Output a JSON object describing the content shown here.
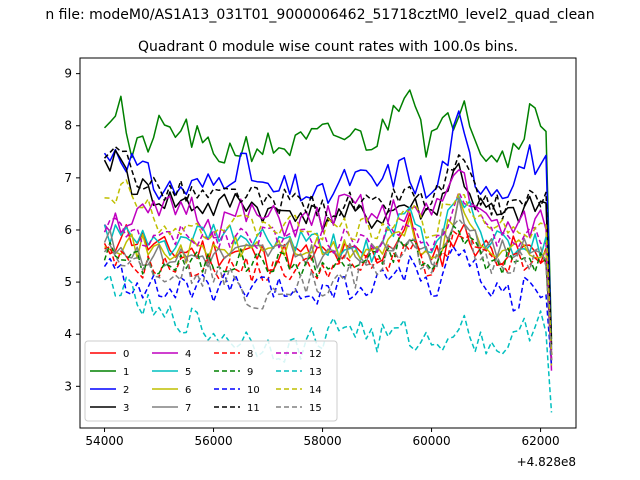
{
  "chart_data": {
    "type": "line",
    "suptitle": "n file: modeM0/AS1A13_031T01_9000006462_51718cztM0_level2_quad_clean",
    "title": "Quadrant 0 module wise count rates with 100.0s bins.",
    "xlabel": "",
    "ylabel": "",
    "x_offset_label": "+4.828e8",
    "xlim": [
      53550,
      62650
    ],
    "ylim": [
      2.2,
      9.3
    ],
    "x_ticks": [
      54000,
      56000,
      58000,
      60000,
      62000
    ],
    "x_tick_labels": [
      "54000",
      "56000",
      "58000",
      "60000",
      "62000"
    ],
    "y_ticks": [
      3,
      4,
      5,
      6,
      7,
      8,
      9
    ],
    "y_tick_labels": [
      "3",
      "4",
      "5",
      "6",
      "7",
      "8",
      "9"
    ],
    "grid": false,
    "legend": "lower-left",
    "legend_columns": 4,
    "x_start": 54000,
    "x_step": 100,
    "x_end": 62200,
    "series": [
      {
        "name": "0",
        "color": "#ff0000",
        "style": "solid",
        "base": 5.5,
        "amp": 0.3,
        "phase": 0.3,
        "seed": 11,
        "end": 3.6,
        "anchors": [
          [
            54000,
            5.5
          ],
          [
            54300,
            6.0
          ],
          [
            55000,
            5.6
          ],
          [
            56000,
            5.6
          ],
          [
            57000,
            5.5
          ],
          [
            58000,
            5.5
          ],
          [
            59000,
            5.5
          ],
          [
            59600,
            6.1
          ],
          [
            60000,
            5.3
          ],
          [
            60500,
            6.0
          ],
          [
            61000,
            5.6
          ],
          [
            62000,
            5.6
          ]
        ]
      },
      {
        "name": "1",
        "color": "#008000",
        "style": "solid",
        "base": 8.0,
        "amp": 0.3,
        "phase": 1.1,
        "seed": 21,
        "end": 3.9,
        "anchors": [
          [
            54000,
            8.1
          ],
          [
            54300,
            8.45
          ],
          [
            54500,
            7.4
          ],
          [
            55000,
            7.9
          ],
          [
            55500,
            7.9
          ],
          [
            56000,
            7.4
          ],
          [
            56500,
            7.6
          ],
          [
            57000,
            7.6
          ],
          [
            57500,
            7.6
          ],
          [
            58000,
            7.8
          ],
          [
            58500,
            7.8
          ],
          [
            59000,
            7.7
          ],
          [
            59300,
            8.3
          ],
          [
            59600,
            8.95
          ],
          [
            59900,
            7.7
          ],
          [
            60300,
            8.0
          ],
          [
            60600,
            8.6
          ],
          [
            60900,
            7.6
          ],
          [
            61400,
            7.4
          ],
          [
            61800,
            8.25
          ],
          [
            62100,
            8.05
          ]
        ]
      },
      {
        "name": "2",
        "color": "#0000ff",
        "style": "solid",
        "base": 6.9,
        "amp": 0.3,
        "phase": 2.0,
        "seed": 31,
        "end": 3.7,
        "anchors": [
          [
            54000,
            7.4
          ],
          [
            54200,
            7.6
          ],
          [
            54500,
            7.3
          ],
          [
            55000,
            6.8
          ],
          [
            55500,
            6.8
          ],
          [
            56000,
            6.9
          ],
          [
            56500,
            7.3
          ],
          [
            57000,
            6.7
          ],
          [
            57500,
            6.8
          ],
          [
            58000,
            6.6
          ],
          [
            58500,
            7.0
          ],
          [
            59000,
            6.9
          ],
          [
            59500,
            7.2
          ],
          [
            60000,
            6.6
          ],
          [
            60500,
            8.05
          ],
          [
            60800,
            7.0
          ],
          [
            61300,
            6.8
          ],
          [
            61800,
            7.4
          ],
          [
            62100,
            7.2
          ]
        ]
      },
      {
        "name": "3",
        "color": "#000000",
        "style": "solid",
        "base": 6.5,
        "amp": 0.25,
        "phase": 0.7,
        "seed": 41,
        "end": 3.6,
        "anchors": [
          [
            54000,
            7.1
          ],
          [
            54200,
            7.5
          ],
          [
            54500,
            6.9
          ],
          [
            55000,
            6.6
          ],
          [
            55500,
            6.5
          ],
          [
            56000,
            6.4
          ],
          [
            56500,
            6.6
          ],
          [
            57000,
            6.3
          ],
          [
            57500,
            6.4
          ],
          [
            58000,
            6.2
          ],
          [
            58500,
            6.3
          ],
          [
            59000,
            6.2
          ],
          [
            59500,
            6.5
          ],
          [
            60000,
            6.3
          ],
          [
            60500,
            7.2
          ],
          [
            60800,
            6.5
          ],
          [
            61300,
            6.2
          ],
          [
            61800,
            6.4
          ],
          [
            62100,
            6.5
          ]
        ]
      },
      {
        "name": "4",
        "color": "#bf00bf",
        "style": "solid",
        "base": 6.2,
        "amp": 0.3,
        "phase": 1.7,
        "seed": 51,
        "end": 3.3,
        "anchors": [
          [
            54000,
            6.2
          ],
          [
            54500,
            6.2
          ],
          [
            55000,
            6.3
          ],
          [
            55500,
            6.5
          ],
          [
            56000,
            6.1
          ],
          [
            56500,
            6.3
          ],
          [
            57000,
            6.2
          ],
          [
            57500,
            6.1
          ],
          [
            58000,
            6.2
          ],
          [
            58500,
            6.5
          ],
          [
            59000,
            6.2
          ],
          [
            59500,
            6.4
          ],
          [
            60000,
            6.2
          ],
          [
            60500,
            7.2
          ],
          [
            61000,
            6.1
          ],
          [
            61500,
            6.0
          ],
          [
            62100,
            6.2
          ]
        ]
      },
      {
        "name": "5",
        "color": "#00bfbf",
        "style": "solid",
        "base": 5.8,
        "amp": 0.25,
        "phase": 2.6,
        "seed": 61,
        "end": 3.5,
        "anchors": [
          [
            54000,
            6.0
          ],
          [
            54500,
            5.8
          ],
          [
            55000,
            5.7
          ],
          [
            56000,
            5.9
          ],
          [
            57000,
            5.8
          ],
          [
            58000,
            5.7
          ],
          [
            59000,
            5.6
          ],
          [
            59600,
            6.3
          ],
          [
            60000,
            5.5
          ],
          [
            60500,
            6.8
          ],
          [
            61000,
            5.8
          ],
          [
            62000,
            5.7
          ]
        ]
      },
      {
        "name": "6",
        "color": "#bfbf00",
        "style": "solid",
        "base": 5.7,
        "amp": 0.25,
        "phase": 3.1,
        "seed": 71,
        "end": 3.4,
        "anchors": [
          [
            54000,
            5.9
          ],
          [
            54500,
            5.7
          ],
          [
            55000,
            5.6
          ],
          [
            56000,
            5.6
          ],
          [
            57000,
            5.7
          ],
          [
            58000,
            5.6
          ],
          [
            59000,
            5.6
          ],
          [
            59600,
            6.0
          ],
          [
            60000,
            5.4
          ],
          [
            60500,
            6.4
          ],
          [
            61000,
            5.7
          ],
          [
            62000,
            5.6
          ]
        ]
      },
      {
        "name": "7",
        "color": "#808080",
        "style": "solid",
        "base": 5.6,
        "amp": 0.25,
        "phase": 0.2,
        "seed": 81,
        "end": 3.5,
        "anchors": [
          [
            54000,
            5.8
          ],
          [
            54500,
            5.6
          ],
          [
            55000,
            5.5
          ],
          [
            56000,
            5.5
          ],
          [
            57000,
            5.6
          ],
          [
            58000,
            5.5
          ],
          [
            59000,
            5.5
          ],
          [
            59600,
            6.0
          ],
          [
            60000,
            5.3
          ],
          [
            60500,
            6.5
          ],
          [
            61000,
            5.6
          ],
          [
            62000,
            5.6
          ]
        ]
      },
      {
        "name": "8",
        "color": "#ff0000",
        "style": "dashed",
        "base": 5.3,
        "amp": 0.25,
        "phase": 1.3,
        "seed": 91,
        "end": 3.5,
        "anchors": [
          [
            54000,
            5.5
          ],
          [
            54500,
            5.3
          ],
          [
            55000,
            5.3
          ],
          [
            56000,
            5.3
          ],
          [
            57000,
            5.2
          ],
          [
            58000,
            5.3
          ],
          [
            59000,
            5.3
          ],
          [
            59600,
            5.7
          ],
          [
            60000,
            5.1
          ],
          [
            60500,
            5.9
          ],
          [
            61000,
            5.4
          ],
          [
            62000,
            5.3
          ]
        ]
      },
      {
        "name": "9",
        "color": "#008000",
        "style": "dashed",
        "base": 5.4,
        "amp": 0.25,
        "phase": 2.2,
        "seed": 101,
        "end": 3.6,
        "anchors": [
          [
            54000,
            5.6
          ],
          [
            54500,
            5.4
          ],
          [
            55000,
            5.3
          ],
          [
            56000,
            5.4
          ],
          [
            57000,
            5.4
          ],
          [
            58000,
            5.3
          ],
          [
            59000,
            5.4
          ],
          [
            59600,
            5.8
          ],
          [
            60000,
            5.2
          ],
          [
            60500,
            6.1
          ],
          [
            61000,
            5.4
          ],
          [
            62000,
            5.4
          ]
        ]
      },
      {
        "name": "10",
        "color": "#0000ff",
        "style": "dashed",
        "base": 5.0,
        "amp": 0.3,
        "phase": 2.9,
        "seed": 111,
        "end": 3.4,
        "anchors": [
          [
            54000,
            5.3
          ],
          [
            54500,
            5.0
          ],
          [
            55000,
            4.8
          ],
          [
            56000,
            4.9
          ],
          [
            57000,
            4.8
          ],
          [
            58000,
            4.8
          ],
          [
            59000,
            4.9
          ],
          [
            59600,
            5.4
          ],
          [
            60000,
            4.7
          ],
          [
            60500,
            5.8
          ],
          [
            61000,
            4.9
          ],
          [
            61500,
            4.7
          ],
          [
            62000,
            5.0
          ]
        ]
      },
      {
        "name": "11",
        "color": "#000000",
        "style": "dashed",
        "base": 6.6,
        "amp": 0.25,
        "phase": 0.9,
        "seed": 121,
        "end": 3.8,
        "anchors": [
          [
            54000,
            7.2
          ],
          [
            54300,
            7.6
          ],
          [
            54600,
            7.0
          ],
          [
            55000,
            6.8
          ],
          [
            55500,
            6.7
          ],
          [
            56000,
            6.6
          ],
          [
            56500,
            6.7
          ],
          [
            57000,
            6.5
          ],
          [
            57500,
            6.6
          ],
          [
            58000,
            6.4
          ],
          [
            58500,
            6.5
          ],
          [
            59000,
            6.4
          ],
          [
            59500,
            6.7
          ],
          [
            60000,
            6.5
          ],
          [
            60500,
            7.3
          ],
          [
            60800,
            6.7
          ],
          [
            61300,
            6.4
          ],
          [
            61800,
            6.6
          ],
          [
            62100,
            6.6
          ]
        ]
      },
      {
        "name": "12",
        "color": "#bf00bf",
        "style": "dashed",
        "base": 5.9,
        "amp": 0.25,
        "phase": 1.9,
        "seed": 131,
        "end": 3.5,
        "anchors": [
          [
            54000,
            6.1
          ],
          [
            54500,
            5.9
          ],
          [
            55000,
            5.8
          ],
          [
            56000,
            5.9
          ],
          [
            57000,
            5.9
          ],
          [
            58000,
            5.8
          ],
          [
            59000,
            5.8
          ],
          [
            59600,
            6.3
          ],
          [
            60000,
            5.6
          ],
          [
            60500,
            6.7
          ],
          [
            61000,
            5.9
          ],
          [
            62000,
            5.8
          ]
        ]
      },
      {
        "name": "13",
        "color": "#00bfbf",
        "style": "dashed",
        "base": 4.0,
        "amp": 0.3,
        "phase": 0.5,
        "seed": 141,
        "end": 2.5,
        "anchors": [
          [
            54000,
            5.0
          ],
          [
            54200,
            5.0
          ],
          [
            54500,
            4.7
          ],
          [
            55000,
            4.3
          ],
          [
            55500,
            4.3
          ],
          [
            56000,
            4.0
          ],
          [
            56500,
            3.9
          ],
          [
            57000,
            3.8
          ],
          [
            57500,
            3.7
          ],
          [
            58000,
            4.0
          ],
          [
            58500,
            4.2
          ],
          [
            59000,
            3.9
          ],
          [
            59500,
            4.0
          ],
          [
            60000,
            3.8
          ],
          [
            60500,
            4.2
          ],
          [
            61000,
            3.8
          ],
          [
            61500,
            3.8
          ],
          [
            62000,
            4.4
          ],
          [
            62100,
            4.3
          ]
        ]
      },
      {
        "name": "14",
        "color": "#bfbf00",
        "style": "dashed",
        "base": 6.1,
        "amp": 0.25,
        "phase": 2.7,
        "seed": 151,
        "end": 3.6,
        "anchors": [
          [
            54000,
            6.4
          ],
          [
            54400,
            6.9
          ],
          [
            55000,
            6.2
          ],
          [
            56000,
            6.0
          ],
          [
            57000,
            6.1
          ],
          [
            58000,
            6.0
          ],
          [
            59000,
            6.0
          ],
          [
            59600,
            6.4
          ],
          [
            60000,
            5.9
          ],
          [
            60500,
            6.9
          ],
          [
            61000,
            6.1
          ],
          [
            62000,
            6.0
          ]
        ]
      },
      {
        "name": "15",
        "color": "#808080",
        "style": "dashed",
        "base": 5.5,
        "amp": 0.3,
        "phase": 1.5,
        "seed": 161,
        "end": 3.5,
        "anchors": [
          [
            54000,
            5.7
          ],
          [
            54500,
            5.4
          ],
          [
            55000,
            5.3
          ],
          [
            56000,
            5.2
          ],
          [
            56800,
            4.7
          ],
          [
            57500,
            5.1
          ],
          [
            58000,
            4.9
          ],
          [
            59000,
            5.3
          ],
          [
            59600,
            5.8
          ],
          [
            60000,
            5.2
          ],
          [
            60500,
            6.0
          ],
          [
            61000,
            5.4
          ],
          [
            62000,
            5.4
          ]
        ]
      }
    ]
  }
}
